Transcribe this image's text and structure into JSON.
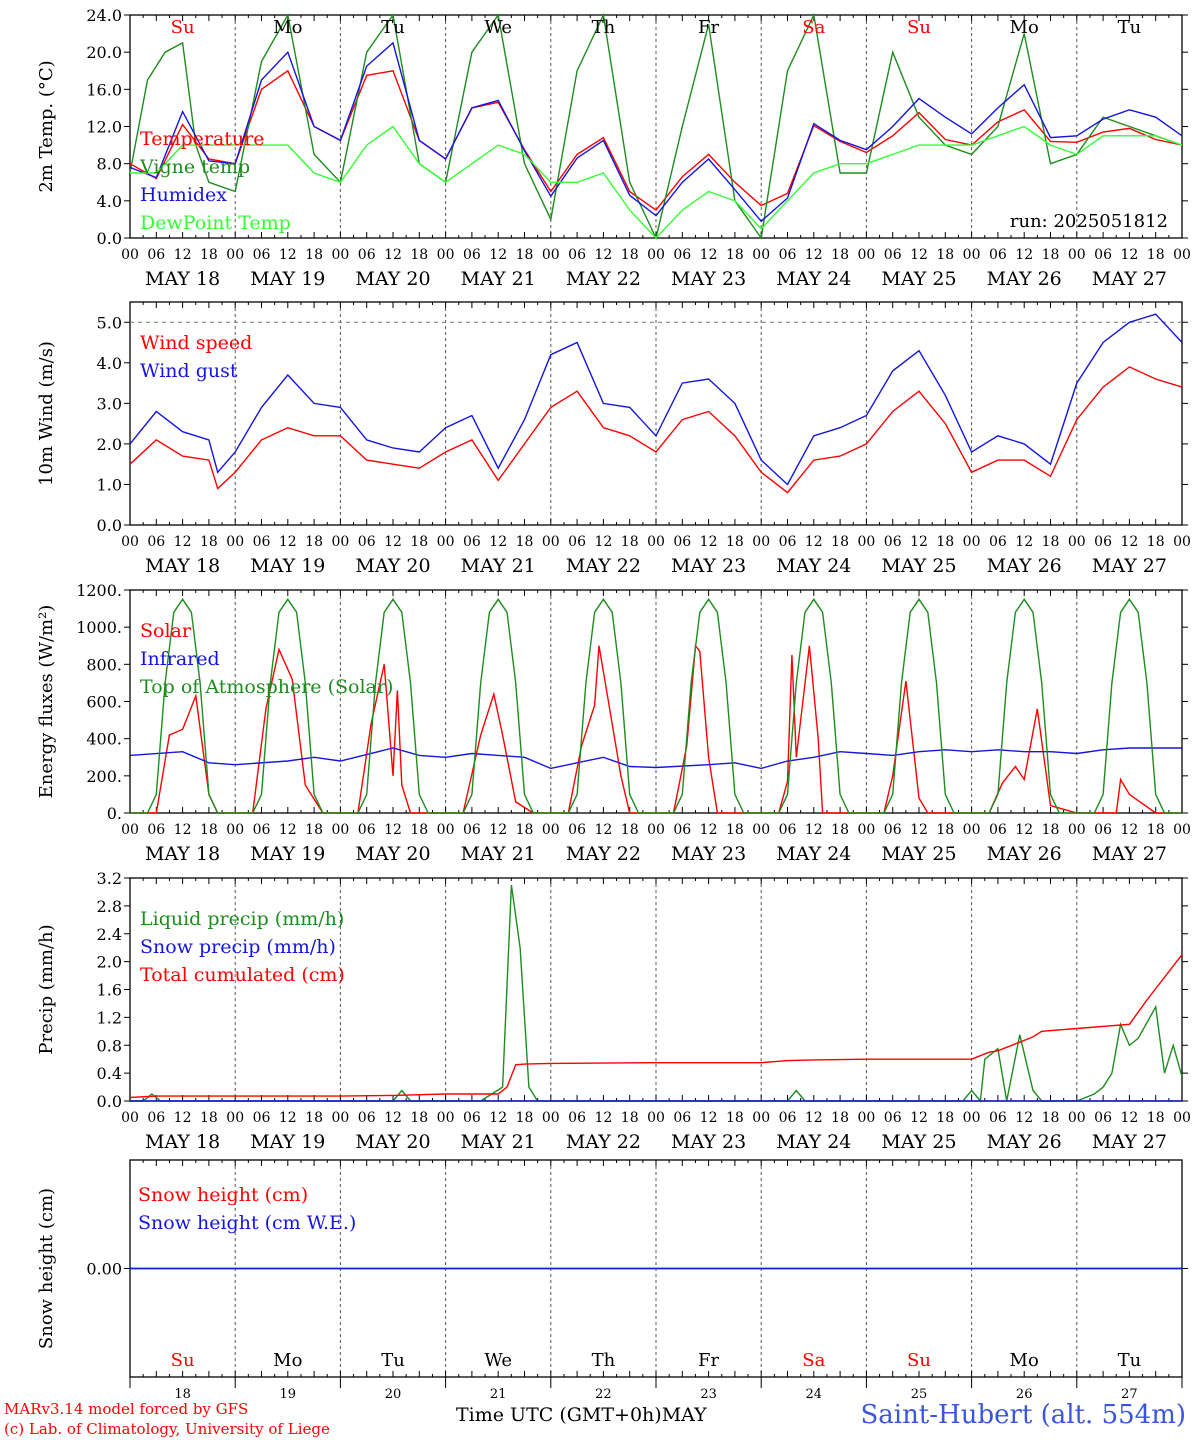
{
  "days": [
    "MAY 18",
    "MAY 19",
    "MAY 20",
    "MAY 21",
    "MAY 22",
    "MAY 23",
    "MAY 24",
    "MAY 25",
    "MAY 26",
    "MAY 27"
  ],
  "weekdays": [
    "Su",
    "Mo",
    "Tu",
    "We",
    "Th",
    "Fr",
    "Sa",
    "Su",
    "Mo",
    "Tu"
  ],
  "weekday_colors": [
    "#ff0000",
    "#000000",
    "#000000",
    "#000000",
    "#000000",
    "#000000",
    "#ff0000",
    "#ff0000",
    "#000000",
    "#000000"
  ],
  "hour_ticks": [
    "00",
    "06",
    "12",
    "18"
  ],
  "bottom_day_numbers": [
    "18",
    "19",
    "20",
    "21",
    "22",
    "23",
    "24",
    "25",
    "26",
    "27"
  ],
  "run_label": "run: 2025051812",
  "footer": {
    "credit_line1": "MARv3.14 model forced by GFS",
    "credit_line2": "(c) Lab. of Climatology, University of Liege",
    "x_title": "Time UTC (GMT+0h)",
    "month": "MAY",
    "station": "Saint-Hubert (alt. 554m)"
  },
  "chart_data": [
    {
      "type": "line",
      "ylabel": "2m Temp. (°C)",
      "ylim": [
        0,
        24
      ],
      "yticks": [
        "0.0",
        "4.0",
        "8.0",
        "12.0",
        "16.0",
        "20.0",
        "24.0"
      ],
      "x_units": "hours since MAY 18 00 UTC",
      "series": [
        {
          "name": "Temperature",
          "color": "#ff0000",
          "x": [
            0,
            6,
            12,
            18,
            24,
            30,
            36,
            42,
            48,
            54,
            60,
            66,
            72,
            78,
            84,
            90,
            96,
            102,
            108,
            114,
            120,
            126,
            132,
            138,
            144,
            150,
            156,
            162,
            168,
            174,
            180,
            186,
            192,
            198,
            204,
            210,
            216,
            222,
            228,
            234,
            240
          ],
          "y": [
            8,
            6.4,
            12.2,
            8.5,
            8,
            16,
            18,
            12,
            10.5,
            17.5,
            18,
            10.5,
            8.5,
            14,
            14.6,
            9.5,
            5,
            9,
            10.8,
            5,
            3,
            6.6,
            9,
            6,
            3.5,
            4.8,
            12.1,
            10.4,
            9.2,
            11,
            13.5,
            10.6,
            10,
            12.5,
            13.8,
            10.4,
            10.3,
            11.4,
            11.8,
            10.6,
            10
          ]
        },
        {
          "name": "Vigne temp",
          "color": "#1e8c1e",
          "x": [
            0,
            4,
            8,
            12,
            15,
            18,
            24,
            30,
            36,
            42,
            48,
            54,
            60,
            66,
            72,
            78,
            84,
            90,
            96,
            102,
            108,
            114,
            120,
            126,
            132,
            138,
            144,
            150,
            156,
            162,
            168,
            174,
            180,
            186,
            192,
            198,
            204,
            210,
            216,
            222,
            228,
            234,
            240
          ],
          "y": [
            7,
            17,
            20,
            21,
            10,
            6,
            5,
            19,
            24,
            9,
            6,
            20,
            24,
            8,
            6,
            20,
            24,
            8,
            2,
            18,
            24,
            6,
            0,
            12,
            23,
            4,
            0,
            18,
            24,
            7,
            7,
            20,
            13,
            10,
            9,
            12,
            22,
            8,
            9,
            13,
            12,
            11,
            10
          ]
        },
        {
          "name": "Humidex",
          "color": "#1515e0",
          "x": [
            0,
            6,
            12,
            18,
            24,
            30,
            36,
            42,
            48,
            54,
            60,
            66,
            72,
            78,
            84,
            90,
            96,
            102,
            108,
            114,
            120,
            126,
            132,
            138,
            144,
            150,
            156,
            162,
            168,
            174,
            180,
            186,
            192,
            198,
            204,
            210,
            216,
            222,
            228,
            234,
            240
          ],
          "y": [
            7.6,
            6.5,
            13.6,
            8.3,
            8,
            17,
            20,
            12,
            10.5,
            18.5,
            21,
            10.5,
            8.5,
            14,
            14.8,
            9.4,
            4.5,
            8.6,
            10.5,
            4.6,
            2.4,
            6,
            8.5,
            5.2,
            1.8,
            4.3,
            12.3,
            10.5,
            9.5,
            12,
            15,
            13,
            11.2,
            14,
            16.5,
            10.8,
            11,
            12.8,
            13.8,
            13,
            11
          ]
        },
        {
          "name": "DewPoint Temp",
          "color": "#33ff33",
          "x": [
            0,
            6,
            12,
            18,
            24,
            30,
            36,
            42,
            48,
            54,
            60,
            66,
            72,
            78,
            84,
            90,
            96,
            102,
            108,
            114,
            120,
            126,
            132,
            138,
            144,
            150,
            156,
            162,
            168,
            174,
            180,
            186,
            192,
            198,
            204,
            210,
            216,
            222,
            228,
            234,
            240
          ],
          "y": [
            7,
            7,
            10,
            10,
            10,
            10,
            10,
            7,
            6,
            10,
            12,
            8,
            6,
            8,
            10,
            9,
            6,
            6,
            7,
            3,
            0,
            3,
            5,
            4,
            1,
            4,
            7,
            8,
            8,
            9,
            10,
            10,
            10,
            11,
            12,
            10,
            9,
            11,
            11,
            11,
            10
          ]
        }
      ]
    },
    {
      "type": "line",
      "ylabel": "10m Wind (m/s)",
      "ylim": [
        0,
        5.5
      ],
      "yticks": [
        "0.0",
        "1.0",
        "2.0",
        "3.0",
        "4.0",
        "5.0"
      ],
      "x_units": "hours since MAY 18 00 UTC",
      "series": [
        {
          "name": "Wind speed",
          "color": "#ff0000",
          "x": [
            0,
            6,
            12,
            18,
            20,
            24,
            30,
            36,
            42,
            48,
            54,
            60,
            66,
            72,
            78,
            84,
            90,
            96,
            102,
            108,
            114,
            120,
            126,
            132,
            138,
            144,
            150,
            156,
            162,
            168,
            174,
            180,
            186,
            192,
            198,
            204,
            210,
            216,
            222,
            228,
            234,
            240
          ],
          "y": [
            1.5,
            2.1,
            1.7,
            1.6,
            0.9,
            1.3,
            2.1,
            2.4,
            2.2,
            2.2,
            1.6,
            1.5,
            1.4,
            1.8,
            2.1,
            1.1,
            2.0,
            2.9,
            3.3,
            2.4,
            2.2,
            1.8,
            2.6,
            2.8,
            2.2,
            1.3,
            0.8,
            1.6,
            1.7,
            2.0,
            2.8,
            3.3,
            2.5,
            1.3,
            1.6,
            1.6,
            1.2,
            2.6,
            3.4,
            3.9,
            3.6,
            3.4
          ]
        },
        {
          "name": "Wind gust",
          "color": "#1515e0",
          "x": [
            0,
            6,
            12,
            18,
            20,
            24,
            30,
            36,
            42,
            48,
            54,
            60,
            66,
            72,
            78,
            84,
            90,
            96,
            102,
            108,
            114,
            120,
            126,
            132,
            138,
            144,
            150,
            156,
            162,
            168,
            174,
            180,
            186,
            192,
            198,
            204,
            210,
            216,
            222,
            228,
            234,
            240
          ],
          "y": [
            2.0,
            2.8,
            2.3,
            2.1,
            1.3,
            1.8,
            2.9,
            3.7,
            3.0,
            2.9,
            2.1,
            1.9,
            1.8,
            2.4,
            2.7,
            1.4,
            2.6,
            4.2,
            4.5,
            3.0,
            2.9,
            2.2,
            3.5,
            3.6,
            3.0,
            1.6,
            1.0,
            2.2,
            2.4,
            2.7,
            3.8,
            4.3,
            3.2,
            1.8,
            2.2,
            2.0,
            1.5,
            3.5,
            4.5,
            5.0,
            5.2,
            4.5
          ]
        }
      ]
    },
    {
      "type": "line",
      "ylabel": "Energy fluxes (W/m²)",
      "ylim": [
        0,
        1200
      ],
      "yticks": [
        "0.",
        "200.",
        "400.",
        "600.",
        "800.",
        "1000.",
        "1200."
      ],
      "x_units": "hours since MAY 18 00 UTC",
      "series": [
        {
          "name": "Solar",
          "color": "#ff0000",
          "x": [
            0,
            4,
            6,
            9,
            12,
            15,
            18,
            20,
            24,
            28,
            31,
            34,
            37,
            40,
            44,
            48,
            52,
            55,
            58,
            60,
            61,
            62,
            64,
            66,
            72,
            76,
            80,
            83,
            85,
            88,
            92,
            96,
            100,
            103,
            106,
            107,
            109,
            112,
            114,
            120,
            124,
            127,
            129,
            130,
            132,
            134,
            138,
            144,
            148,
            150,
            151,
            152,
            155,
            157,
            158,
            162,
            168,
            172,
            174,
            177,
            180,
            182,
            186,
            192,
            196,
            199,
            202,
            204,
            207,
            210,
            216,
            220,
            223,
            225,
            226,
            228,
            234,
            240
          ],
          "y": [
            0,
            0,
            0,
            420,
            450,
            630,
            100,
            0,
            0,
            0,
            560,
            880,
            720,
            150,
            0,
            0,
            0,
            480,
            800,
            200,
            660,
            150,
            0,
            0,
            0,
            0,
            420,
            640,
            420,
            60,
            0,
            0,
            0,
            360,
            580,
            900,
            620,
            200,
            0,
            0,
            0,
            360,
            900,
            870,
            300,
            0,
            0,
            0,
            0,
            170,
            850,
            300,
            900,
            400,
            0,
            0,
            0,
            0,
            200,
            710,
            80,
            0,
            0,
            0,
            0,
            160,
            250,
            180,
            560,
            40,
            0,
            0,
            0,
            0,
            180,
            100,
            0,
            0
          ]
        },
        {
          "name": "Infrared",
          "color": "#1515e0",
          "x": [
            0,
            12,
            18,
            24,
            36,
            42,
            48,
            60,
            66,
            72,
            78,
            84,
            90,
            96,
            102,
            108,
            114,
            120,
            132,
            138,
            144,
            150,
            156,
            162,
            168,
            174,
            180,
            186,
            192,
            198,
            204,
            210,
            216,
            222,
            228,
            234,
            240
          ],
          "y": [
            310,
            330,
            270,
            260,
            280,
            300,
            280,
            350,
            310,
            300,
            320,
            310,
            300,
            240,
            270,
            300,
            250,
            245,
            260,
            270,
            240,
            280,
            300,
            330,
            320,
            310,
            330,
            340,
            330,
            340,
            330,
            330,
            320,
            340,
            350,
            350,
            350
          ]
        },
        {
          "name": "Top of Atmosphere (Solar)",
          "color": "#1e8c1e",
          "x": [
            0,
            2,
            4,
            6,
            8,
            10,
            12,
            14,
            16,
            18,
            20,
            22,
            24
          ],
          "y": [
            0,
            0,
            0,
            100,
            700,
            1080,
            1150,
            1080,
            700,
            100,
            0,
            0,
            0
          ],
          "repeat_every_hours": 24
        }
      ]
    },
    {
      "type": "line",
      "ylabel": "Precip (mm/h)",
      "ylim": [
        0,
        3.2
      ],
      "yticks": [
        "0.0",
        "0.4",
        "0.8",
        "1.2",
        "1.6",
        "2.0",
        "2.4",
        "2.8",
        "3.2"
      ],
      "x_units": "hours since MAY 18 00 UTC",
      "series": [
        {
          "name": "Liquid precip (mm/h)",
          "color": "#1e8c1e",
          "x": [
            0,
            3,
            5,
            7,
            60,
            62,
            64,
            80,
            85,
            87,
            89,
            91,
            93,
            150,
            152,
            154,
            190,
            192,
            194,
            195,
            198,
            200,
            203,
            206,
            208,
            210,
            216,
            220,
            222,
            224,
            226,
            228,
            230,
            234,
            236,
            238,
            240
          ],
          "y": [
            0,
            0,
            0.1,
            0,
            0,
            0.15,
            0,
            0,
            0.2,
            3.1,
            2.2,
            0.2,
            0,
            0,
            0.15,
            0,
            0,
            0.15,
            0,
            0.6,
            0.75,
            0,
            0.95,
            0.15,
            0,
            0,
            0,
            0.1,
            0.2,
            0.4,
            1.1,
            0.8,
            0.9,
            1.35,
            0.4,
            0.8,
            0.35
          ]
        },
        {
          "name": "Snow precip (mm/h)",
          "color": "#1515e0",
          "x": [
            0,
            240
          ],
          "y": [
            0,
            0
          ]
        },
        {
          "name": "Total cumulated (cm)",
          "color": "#ff0000",
          "x": [
            0,
            6,
            48,
            60,
            72,
            84,
            86,
            88,
            90,
            96,
            120,
            144,
            150,
            156,
            168,
            192,
            196,
            198,
            206,
            208,
            216,
            228,
            232,
            240
          ],
          "y": [
            0.05,
            0.07,
            0.07,
            0.08,
            0.1,
            0.1,
            0.2,
            0.52,
            0.53,
            0.54,
            0.55,
            0.55,
            0.58,
            0.59,
            0.6,
            0.6,
            0.7,
            0.72,
            0.92,
            1.0,
            1.04,
            1.1,
            1.45,
            2.1
          ]
        }
      ]
    },
    {
      "type": "line",
      "ylabel": "Snow height (cm)",
      "yticks": [
        "0.00"
      ],
      "x_units": "hours since MAY 18 00 UTC",
      "series": [
        {
          "name": "Snow height (cm)",
          "color": "#ff0000",
          "x": [
            0,
            240
          ],
          "y": [
            0,
            0
          ]
        },
        {
          "name": "Snow height (cm W.E.)",
          "color": "#1515e0",
          "x": [
            0,
            240
          ],
          "y": [
            0,
            0
          ]
        }
      ]
    }
  ]
}
